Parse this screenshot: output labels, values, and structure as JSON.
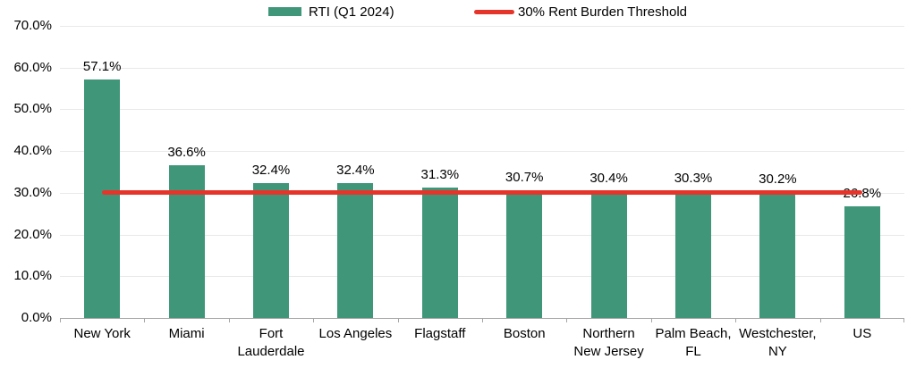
{
  "legend": {
    "series_label": "RTI (Q1 2024)",
    "threshold_label": "30% Rent Burden Threshold"
  },
  "colors": {
    "bar": "#3F9679",
    "threshold": "#E5352B",
    "gridline": "#E9E9E9",
    "axis": "#A6A6A6",
    "text": "#000000",
    "background": "#FFFFFF"
  },
  "chart_data": {
    "type": "bar",
    "title": "",
    "series_name": "RTI (Q1 2024)",
    "categories": [
      "New York",
      "Miami",
      "Fort\nLauderdale",
      "Los Angeles",
      "Flagstaff",
      "Boston",
      "Northern\nNew Jersey",
      "Palm Beach,\nFL",
      "Westchester,\nNY",
      "US"
    ],
    "values": [
      57.1,
      36.6,
      32.4,
      32.4,
      31.3,
      30.7,
      30.4,
      30.3,
      30.2,
      26.8
    ],
    "value_labels": [
      "57.1%",
      "36.6%",
      "32.4%",
      "32.4%",
      "31.3%",
      "30.7%",
      "30.4%",
      "30.3%",
      "30.2%",
      "26.8%"
    ],
    "threshold": {
      "value": 30,
      "label": "30% Rent Burden Threshold"
    },
    "y_axis": {
      "min": 0,
      "max": 70,
      "step": 10,
      "tick_labels": [
        "0.0%",
        "10.0%",
        "20.0%",
        "30.0%",
        "40.0%",
        "50.0%",
        "60.0%",
        "70.0%"
      ]
    },
    "xlabel": "",
    "ylabel": "",
    "grid": true,
    "legend_position": "top"
  }
}
